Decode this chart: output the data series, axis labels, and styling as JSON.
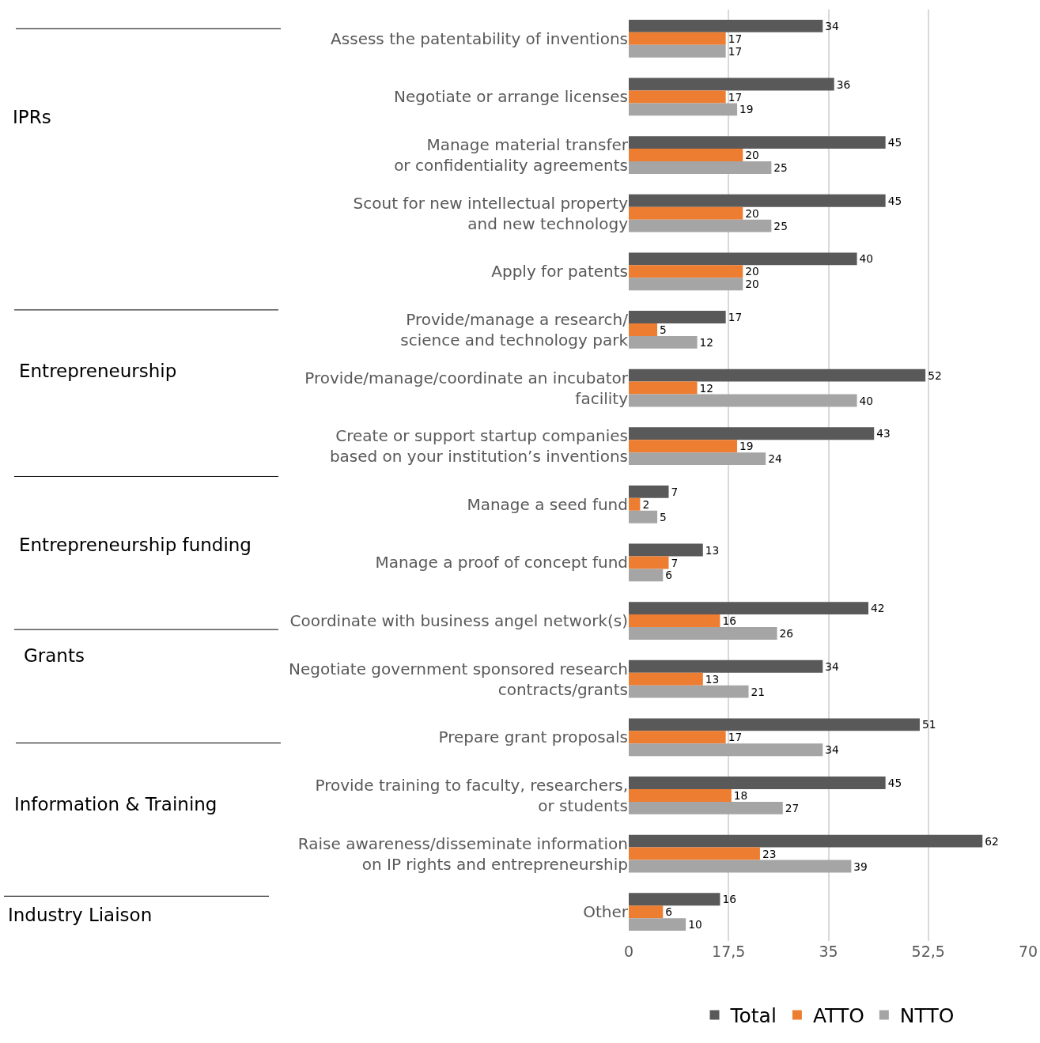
{
  "chart_data": {
    "type": "bar",
    "orientation": "horizontal",
    "categories": [
      "Assess the patentability of inventions",
      "Negotiate or arrange licenses",
      "Manage material transfer\nor confidentiality agreements",
      "Scout for new intellectual property\nand new technology",
      "Apply for patents",
      "Provide/manage a research/\nscience and technology park",
      "Provide/manage/coordinate an incubator\nfacility",
      "Create or support startup companies\nbased on your institution’s inventions",
      "Manage a seed fund",
      "Manage a proof of concept fund",
      "Coordinate with business angel network(s)",
      "Negotiate government sponsored research\ncontracts/grants",
      "Prepare grant proposals",
      "Provide training to faculty, researchers,\nor students",
      "Raise awareness/disseminate information\non IP rights and entrepreneurship",
      "Other"
    ],
    "series": [
      {
        "name": "Total",
        "color": "#595959",
        "values": [
          34,
          36,
          45,
          45,
          40,
          17,
          52,
          43,
          7,
          13,
          42,
          34,
          51,
          45,
          62,
          16
        ]
      },
      {
        "name": "ATTO",
        "color": "#ed7d31",
        "values": [
          17,
          17,
          20,
          20,
          20,
          5,
          12,
          19,
          2,
          7,
          16,
          13,
          17,
          18,
          23,
          6
        ]
      },
      {
        "name": "NTTO",
        "color": "#a5a5a5",
        "values": [
          17,
          19,
          25,
          25,
          20,
          12,
          40,
          24,
          5,
          6,
          26,
          21,
          34,
          27,
          39,
          10
        ]
      }
    ],
    "xlim": [
      0,
      70
    ],
    "xticks": [
      0,
      {
        "value": 17.5,
        "label": "17,5"
      },
      35,
      {
        "value": 52.5,
        "label": "52,5"
      },
      70
    ],
    "grid": "x",
    "legend": "bottom",
    "data_labels": true,
    "annotations": [
      "IPRs",
      "Entrepreneurship",
      "Entrepreneurship funding",
      "Grants",
      "Information & Training",
      "Industry Liaison"
    ]
  }
}
